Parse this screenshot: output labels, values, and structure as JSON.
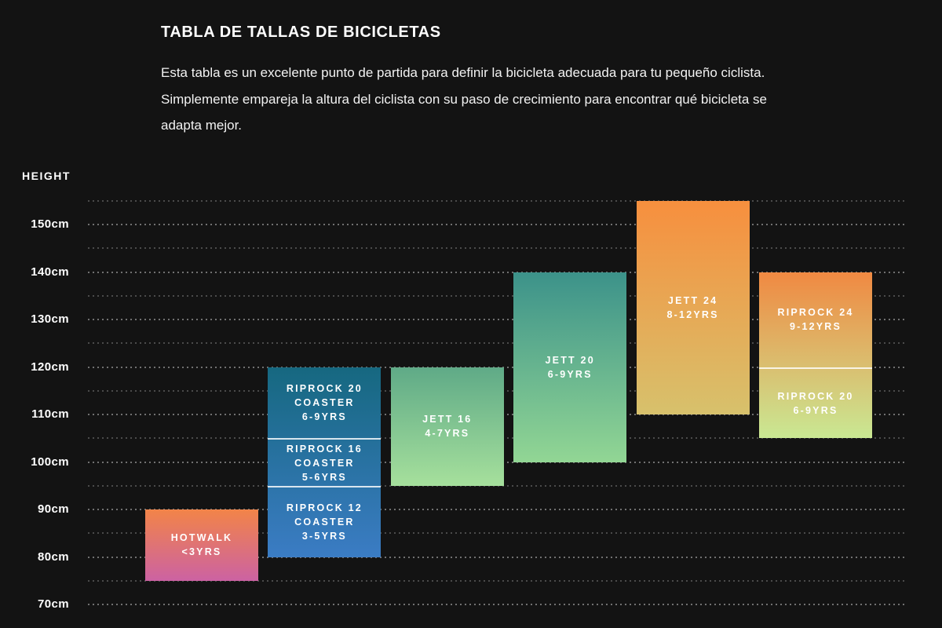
{
  "header": {
    "title": "TABLA DE TALLAS DE BICICLETAS",
    "description": "Esta tabla es un excelente punto de partida para definir la bicicleta adecuada para tu pequeño ciclista. Simplemente empareja la altura del ciclista con su paso de crecimiento para encontrar qué bicicleta se adapta mejor."
  },
  "colors": {
    "background": "#131313",
    "text": "#ffffff",
    "gridline_minor": "rgba(255,255,255,0.24)",
    "gridline_major": "rgba(255,255,255,0.40)",
    "segment_divider": "rgba(255,255,255,0.82)"
  },
  "chart_data": {
    "type": "bar",
    "subtype": "vertical-range-bars",
    "ylabel": "HEIGHT",
    "unit": "cm",
    "ylim": [
      70,
      155
    ],
    "gridline_step_cm": 5,
    "grid": true,
    "yticks": [
      {
        "value": 150,
        "label": "150cm"
      },
      {
        "value": 140,
        "label": "140cm"
      },
      {
        "value": 130,
        "label": "130cm"
      },
      {
        "value": 120,
        "label": "120cm"
      },
      {
        "value": 110,
        "label": "110cm"
      },
      {
        "value": 100,
        "label": "100cm"
      },
      {
        "value": 90,
        "label": "90cm"
      },
      {
        "value": 80,
        "label": "80cm"
      },
      {
        "value": 70,
        "label": "70cm"
      }
    ],
    "columns": [
      {
        "name": "hotwalk",
        "gradient": [
          "#F28448",
          "#CC62A2"
        ],
        "segments": [
          {
            "lines": [
              "HOTWALK"
            ],
            "age": "<3yrs",
            "range_cm": [
              75,
              90
            ]
          }
        ]
      },
      {
        "name": "riprock-coaster-stack",
        "gradient": [
          "#166880",
          "#3B7CC4"
        ],
        "segments": [
          {
            "lines": [
              "RIPROCK 20",
              "COASTER"
            ],
            "age": "6-9yrs",
            "range_cm": [
              105,
              120
            ]
          },
          {
            "lines": [
              "RIPROCK 16",
              "COASTER"
            ],
            "age": "5-6yrs",
            "range_cm": [
              95,
              105
            ]
          },
          {
            "lines": [
              "RIPROCK 12",
              "COASTER"
            ],
            "age": "3-5yrs",
            "range_cm": [
              80,
              95
            ]
          }
        ]
      },
      {
        "name": "jett-16",
        "gradient": [
          "#5FAA87",
          "#A6E09C"
        ],
        "segments": [
          {
            "lines": [
              "JETT 16"
            ],
            "age": "4-7yrs",
            "range_cm": [
              95,
              120
            ]
          }
        ]
      },
      {
        "name": "jett-20",
        "gradient": [
          "#3C928A",
          "#92D694"
        ],
        "segments": [
          {
            "lines": [
              "JETT 20"
            ],
            "age": "6-9yrs",
            "range_cm": [
              100,
              140
            ]
          }
        ]
      },
      {
        "name": "jett-24",
        "gradient": [
          "#F78F3E",
          "#D7C16C"
        ],
        "segments": [
          {
            "lines": [
              "JETT 24"
            ],
            "age": "8-12yrs",
            "range_cm": [
              110,
              155
            ]
          }
        ]
      },
      {
        "name": "riprock-stack",
        "gradient": [
          "#F08942",
          "#C9E893"
        ],
        "segments": [
          {
            "lines": [
              "RIPROCK 24"
            ],
            "age": "9-12yrs",
            "range_cm": [
              120,
              140
            ]
          },
          {
            "lines": [
              "RIPROCK 20"
            ],
            "age": "6-9yrs",
            "range_cm": [
              105,
              120
            ]
          }
        ]
      }
    ]
  }
}
